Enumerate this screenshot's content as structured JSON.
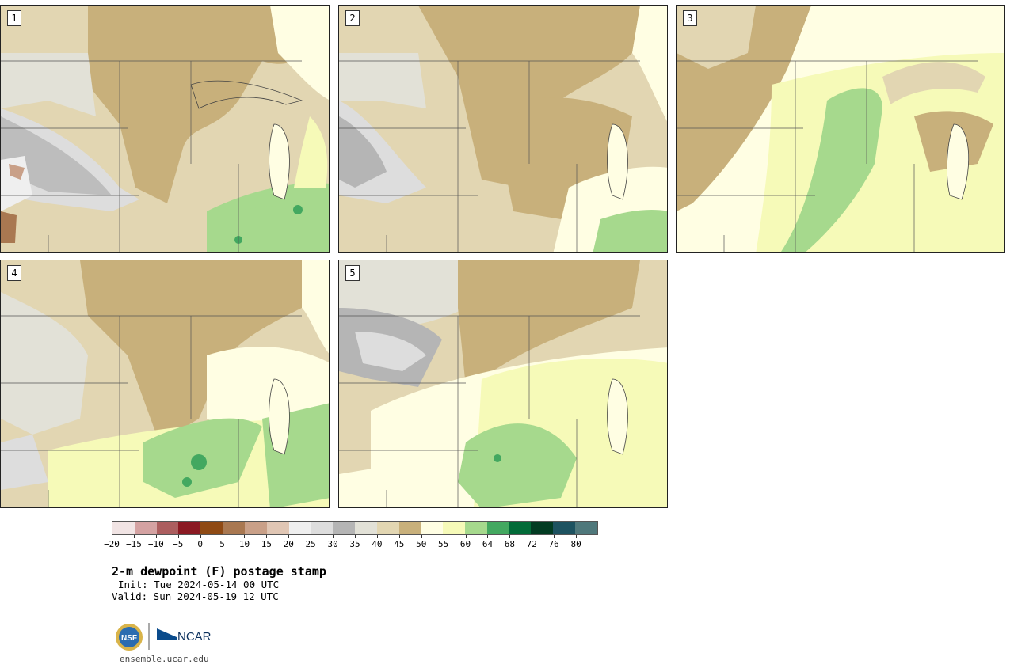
{
  "product": {
    "title": "2-m dewpoint (F) postage stamp",
    "init": "Init: Tue 2024-05-14 00 UTC",
    "valid": "Valid: Sun 2024-05-19 12 UTC",
    "website": "ensemble.ucar.edu",
    "logos": {
      "nsf": "NSF",
      "ncar": "NCAR"
    }
  },
  "panels": [
    {
      "label": "1"
    },
    {
      "label": "2"
    },
    {
      "label": "3"
    },
    {
      "label": "4"
    },
    {
      "label": "5"
    }
  ],
  "colorbar": {
    "tick_labels": [
      "−20",
      "−15",
      "−10",
      "−5",
      "0",
      "5",
      "10",
      "15",
      "20",
      "25",
      "30",
      "35",
      "40",
      "45",
      "50",
      "55",
      "60",
      "64",
      "68",
      "72",
      "76",
      "80"
    ],
    "colors": [
      "#f1e4e4",
      "#d4a2a2",
      "#ac5e5f",
      "#8b1a23",
      "#8f4a14",
      "#a97851",
      "#c9a088",
      "#e0c6b4",
      "#efefef",
      "#dddddd",
      "#b5b5b5",
      "#e2e1d7",
      "#e2d6b2",
      "#c8b07b",
      "#fffee3",
      "#f6fab8",
      "#a6d98d",
      "#43a860",
      "#026b38",
      "#023b22",
      "#1d5260",
      "#4f787b"
    ]
  },
  "colors": {
    "land_ocean_line": "#222222",
    "state_line": "#444444"
  }
}
